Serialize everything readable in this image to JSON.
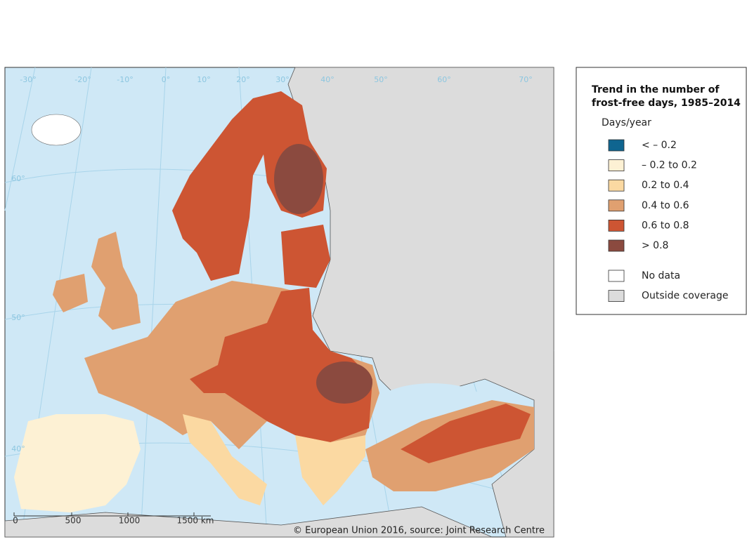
{
  "legend": {
    "title": [
      "Trend in the number of",
      "frost-free days, 1985–2014"
    ],
    "unit": "Days/year",
    "items": [
      {
        "label": "< – 0.2",
        "color": "#0f6590"
      },
      {
        "label": "– 0.2 to 0.2",
        "color": "#fdf1d4"
      },
      {
        "label": "0.2 to 0.4",
        "color": "#fbd9a2"
      },
      {
        "label": "0.4 to 0.6",
        "color": "#e0a070"
      },
      {
        "label": "0.6 to 0.8",
        "color": "#cd5533"
      },
      {
        "label": "> 0.8",
        "color": "#8b4a3f"
      }
    ],
    "extra": [
      {
        "label": "No data",
        "color": "#ffffff"
      },
      {
        "label": "Outside coverage",
        "color": "#dcdcdc"
      }
    ]
  },
  "graticule": {
    "longitudes": [
      "-30°",
      "-20°",
      "-10°",
      "0°",
      "10°",
      "20°",
      "30°",
      "40°",
      "50°",
      "60°",
      "70°"
    ],
    "latitudes": [
      "60°",
      "50°",
      "40°"
    ]
  },
  "scale_bar": [
    "0",
    "500",
    "1000",
    "1500 km"
  ],
  "credit": "© European Union 2016, source: Joint Research Centre"
}
